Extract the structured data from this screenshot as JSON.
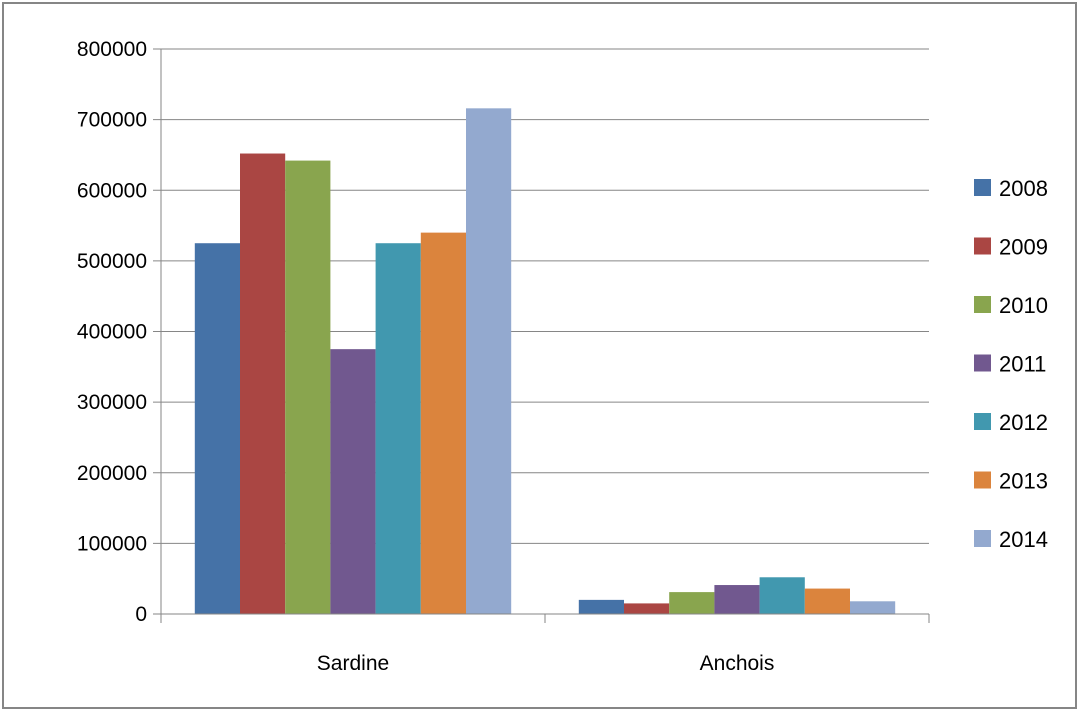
{
  "chart_data": {
    "type": "bar",
    "categories": [
      "Sardine",
      "Anchois"
    ],
    "series": [
      {
        "name": "2008",
        "color": "#4572A7",
        "values": [
          525000,
          20000
        ]
      },
      {
        "name": "2009",
        "color": "#AA4643",
        "values": [
          652000,
          15000
        ]
      },
      {
        "name": "2010",
        "color": "#89A54E",
        "values": [
          642000,
          31000
        ]
      },
      {
        "name": "2011",
        "color": "#71588F",
        "values": [
          375000,
          41000
        ]
      },
      {
        "name": "2012",
        "color": "#4198AF",
        "values": [
          525000,
          52000
        ]
      },
      {
        "name": "2013",
        "color": "#DB843D",
        "values": [
          540000,
          36000
        ]
      },
      {
        "name": "2014",
        "color": "#93A9CF",
        "values": [
          716000,
          18000
        ]
      }
    ],
    "ylim": [
      0,
      800000
    ],
    "yticks": [
      "0",
      "100000",
      "200000",
      "300000",
      "400000",
      "500000",
      "600000",
      "700000",
      "800000"
    ],
    "grid": true,
    "legend_position": "right"
  }
}
